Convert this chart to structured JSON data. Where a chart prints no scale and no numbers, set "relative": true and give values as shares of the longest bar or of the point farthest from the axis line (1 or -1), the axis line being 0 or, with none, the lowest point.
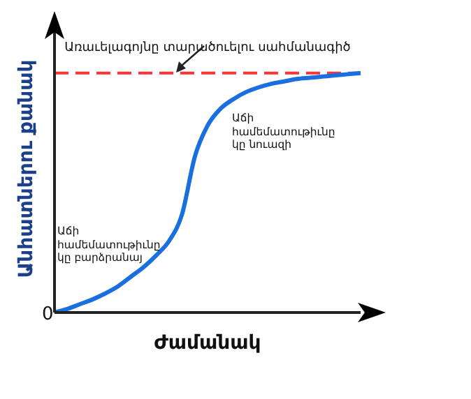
{
  "chart_data": {
    "type": "line",
    "relative": true,
    "xlabel": "Ժամանակ",
    "ylabel": "Անհատներու քանակ",
    "categories": [
      null,
      null,
      null,
      null,
      null,
      null,
      null,
      null,
      null,
      null,
      null,
      null,
      null,
      null,
      null,
      null,
      null,
      null,
      null,
      null,
      null,
      null,
      null,
      null,
      null
    ],
    "series": [
      {
        "color": "#1a6fe0",
        "values": [
          0,
          0.015,
          0.035,
          0.055,
          0.08,
          0.11,
          0.15,
          0.19,
          0.24,
          0.3,
          0.41,
          0.65,
          0.78,
          0.85,
          0.89,
          0.92,
          0.94,
          0.955,
          0.965,
          0.975,
          0.98,
          0.985,
          0.99,
          0.995,
          1
        ]
      }
    ],
    "ref_lines": [
      {
        "axis": "y",
        "value": 1,
        "label": "Առաւելագոյնը տարածուելու սահմանագիծ",
        "color": "#ff3333",
        "line_style": "dashed"
      }
    ],
    "annotations": [
      "0",
      "Աճի համեմատութիւնը կը նուազի",
      "Աճի համեմատութիւնը կը բարձրանայ"
    ],
    "grid": false,
    "legend": false,
    "marker": "none",
    "line_style": "solid"
  }
}
